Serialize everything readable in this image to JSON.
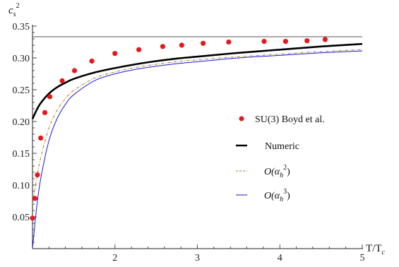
{
  "chart_data": {
    "type": "line",
    "y_label_main": "c",
    "y_label_sub": "s",
    "y_label_sup": "2",
    "x_label_main": "T/T",
    "x_label_sub": "c",
    "xlim": [
      1.0,
      5.0
    ],
    "ylim": [
      0.0,
      0.35
    ],
    "x_ticks": [
      2,
      3,
      4,
      5
    ],
    "x_tick_labels": [
      "2",
      "3",
      "4",
      "5"
    ],
    "y_ticks": [
      0.05,
      0.1,
      0.15,
      0.2,
      0.25,
      0.3,
      0.35
    ],
    "y_tick_labels": [
      "0.05",
      "0.10",
      "0.15",
      "0.20",
      "0.25",
      "0.30",
      "0.35"
    ],
    "grid": false,
    "legend_position": "right",
    "reference_line": {
      "y": 0.3333,
      "color": "#555555"
    },
    "scatter": {
      "name": "SU(3) Boyd et al.",
      "color": "#e8171c",
      "x": [
        1.0,
        1.03,
        1.06,
        1.1,
        1.15,
        1.21,
        1.36,
        1.51,
        1.72,
        2.0,
        2.29,
        2.58,
        2.81,
        3.07,
        3.38,
        3.81,
        4.07,
        4.33,
        4.55
      ],
      "y": [
        0.048,
        0.079,
        0.116,
        0.174,
        0.214,
        0.239,
        0.264,
        0.28,
        0.295,
        0.307,
        0.313,
        0.318,
        0.32,
        0.323,
        0.325,
        0.326,
        0.326,
        0.327,
        0.329
      ]
    },
    "series": [
      {
        "name": "Numeric",
        "color": "#000000",
        "x": [
          1.0,
          1.05,
          1.1,
          1.2,
          1.3,
          1.4,
          1.5,
          1.75,
          2.0,
          2.25,
          2.5,
          2.75,
          3.0,
          3.5,
          4.0,
          4.5,
          5.0
        ],
        "y": [
          0.204,
          0.218,
          0.229,
          0.244,
          0.254,
          0.261,
          0.267,
          0.277,
          0.284,
          0.29,
          0.295,
          0.299,
          0.302,
          0.308,
          0.313,
          0.318,
          0.322
        ]
      },
      {
        "name_main": "O(α",
        "name_sub": "h",
        "name_sup": "2",
        "name_tail": ")",
        "color": "#b0702a",
        "x": [
          1.0,
          1.05,
          1.1,
          1.2,
          1.3,
          1.4,
          1.5,
          1.75,
          2.0,
          2.25,
          2.5,
          2.75,
          3.0,
          3.5,
          4.0,
          4.5,
          5.0
        ],
        "y": [
          0.07,
          0.11,
          0.143,
          0.19,
          0.218,
          0.236,
          0.249,
          0.268,
          0.278,
          0.285,
          0.29,
          0.294,
          0.297,
          0.302,
          0.306,
          0.31,
          0.313
        ]
      },
      {
        "name_main": "O(α",
        "name_sub": "h",
        "name_sup": "3",
        "name_tail": ")",
        "color": "#1a1ae0",
        "x": [
          1.0,
          1.05,
          1.1,
          1.2,
          1.3,
          1.4,
          1.5,
          1.75,
          2.0,
          2.25,
          2.5,
          2.75,
          3.0,
          3.5,
          4.0,
          4.5,
          5.0
        ],
        "y": [
          0.0,
          0.064,
          0.11,
          0.17,
          0.205,
          0.227,
          0.242,
          0.264,
          0.275,
          0.282,
          0.287,
          0.291,
          0.294,
          0.3,
          0.304,
          0.308,
          0.311
        ]
      }
    ]
  }
}
